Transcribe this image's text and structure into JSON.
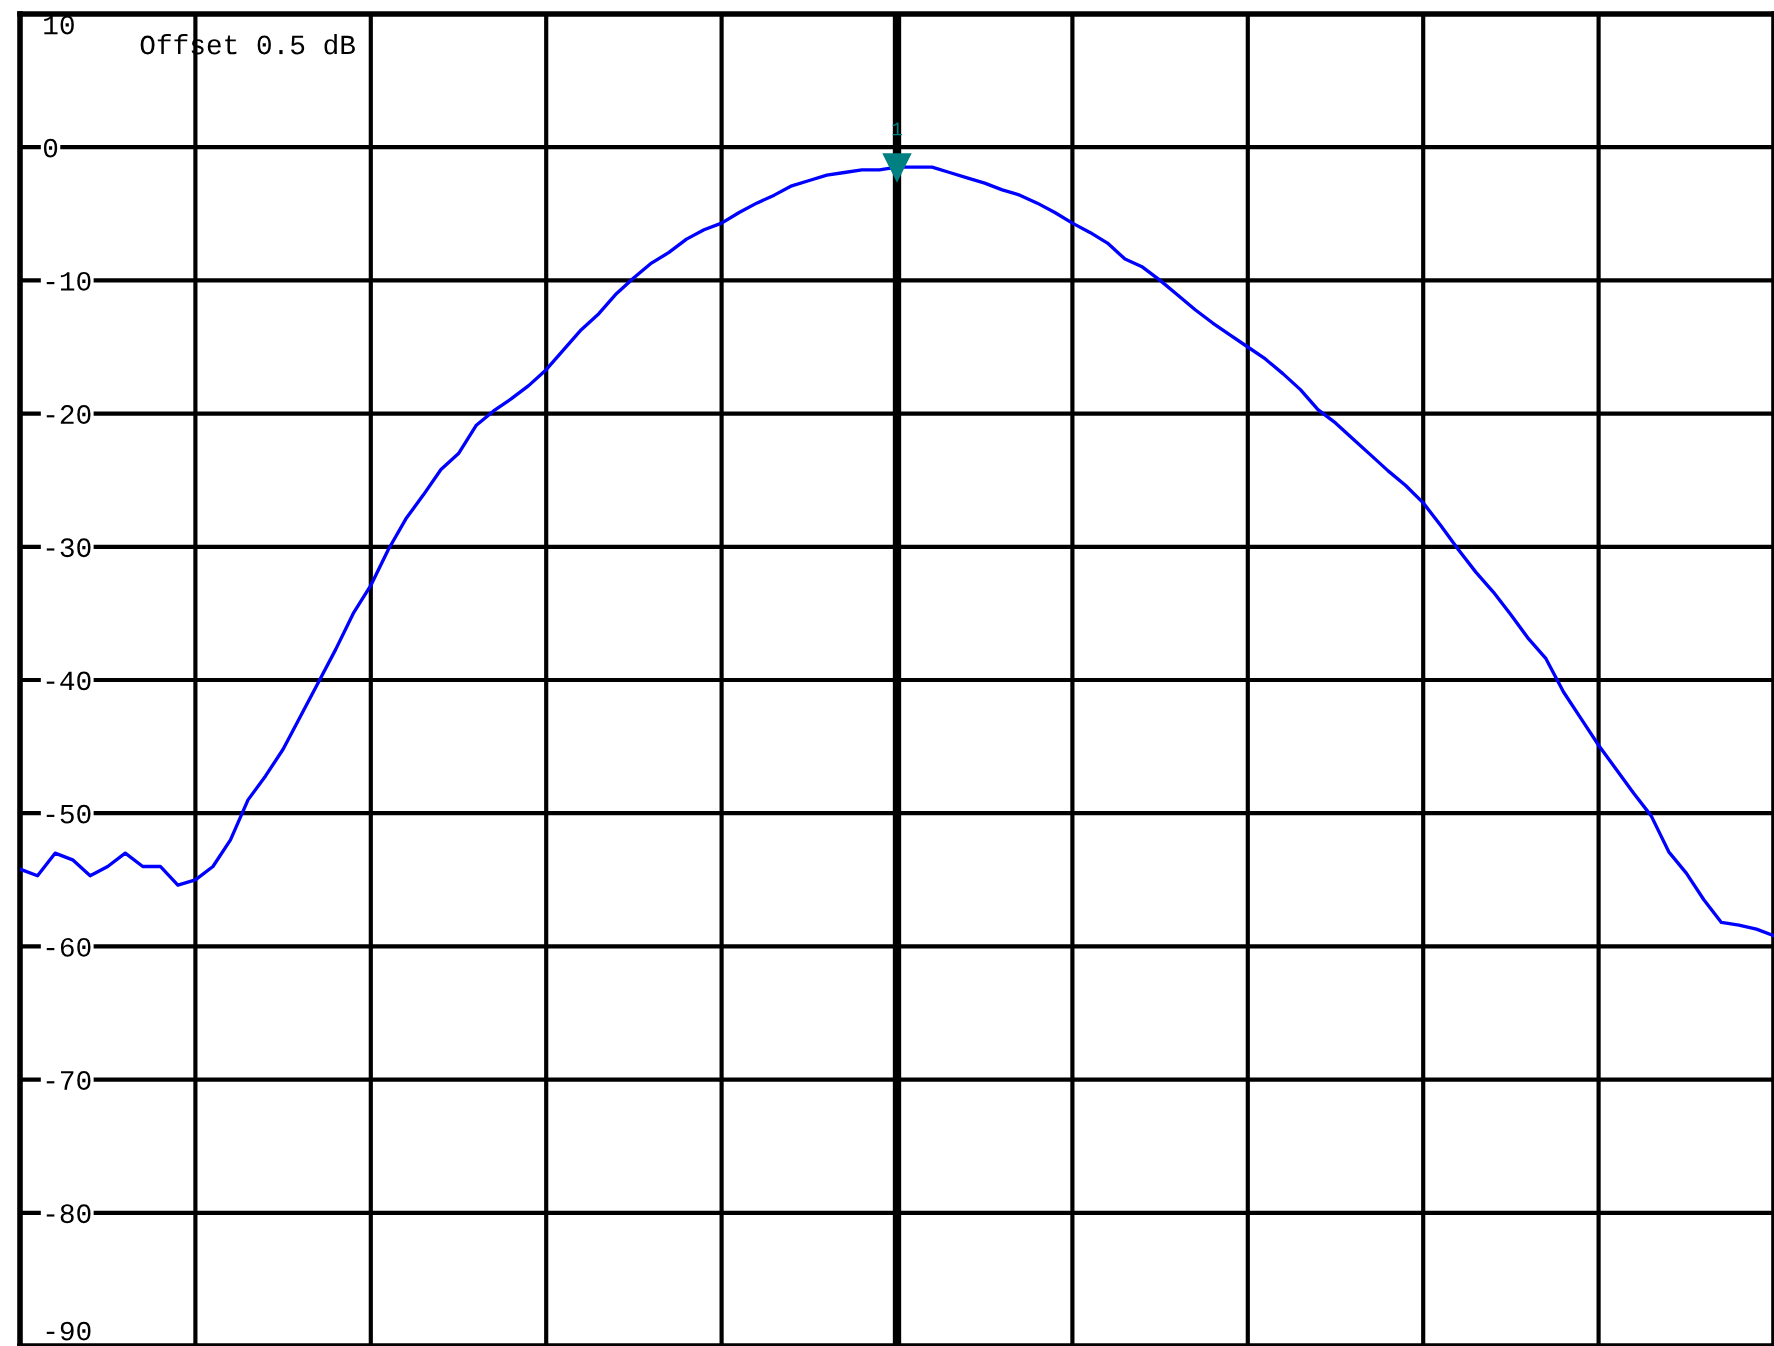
{
  "chart_data": {
    "type": "line",
    "categories": [
      null,
      null,
      null,
      null,
      null,
      null,
      null,
      null,
      null,
      null,
      null,
      null,
      null,
      null,
      null,
      null,
      null,
      null,
      null,
      null,
      null,
      null,
      null,
      null,
      null,
      null,
      null,
      null,
      null,
      null,
      null,
      null,
      null,
      null,
      null,
      null,
      null,
      null,
      null,
      null,
      null,
      null,
      null,
      null,
      null,
      null,
      null,
      null,
      null,
      null,
      null,
      null,
      null,
      null,
      null,
      null,
      null,
      null,
      null,
      null,
      null,
      null,
      null,
      null,
      null,
      null,
      null,
      null,
      null,
      null,
      null,
      null,
      null,
      null,
      null,
      null,
      null,
      null,
      null,
      null,
      null,
      null,
      null,
      null,
      null,
      null,
      null,
      null,
      null,
      null,
      null,
      null,
      null,
      null,
      null,
      null,
      null,
      null,
      null,
      null,
      null
    ],
    "series": [
      {
        "color": "#0000ff",
        "values": [
          -54.2,
          -54.7,
          -53.0,
          -53.5,
          -54.7,
          -54.0,
          -53.0,
          -54.0,
          -54.0,
          -55.4,
          -55.0,
          -54.0,
          -52.0,
          -49.0,
          -47.2,
          -45.2,
          -42.7,
          -40.2,
          -37.7,
          -35.0,
          -32.9,
          -30.2,
          -27.9,
          -26.1,
          -24.2,
          -23.0,
          -20.9,
          -19.8,
          -18.9,
          -17.9,
          -16.7,
          -15.2,
          -13.7,
          -12.5,
          -11.0,
          -9.8,
          -8.7,
          -7.9,
          -6.9,
          -6.2,
          -5.7,
          -4.9,
          -4.2,
          -3.6,
          -2.9,
          -2.5,
          -2.1,
          -1.9,
          -1.7,
          -1.7,
          -1.5,
          -1.5,
          -1.5,
          -1.9,
          -2.3,
          -2.7,
          -3.2,
          -3.6,
          -4.2,
          -4.9,
          -5.7,
          -6.4,
          -7.2,
          -8.4,
          -9.0,
          -10.0,
          -11.1,
          -12.2,
          -13.2,
          -14.1,
          -15.0,
          -15.9,
          -17.0,
          -18.2,
          -19.7,
          -20.7,
          -21.9,
          -23.1,
          -24.3,
          -25.4,
          -26.7,
          -28.4,
          -30.2,
          -31.9,
          -33.4,
          -35.1,
          -36.9,
          -38.4,
          -40.9,
          -42.9,
          -44.9,
          -46.7,
          -48.5,
          -50.2,
          -52.9,
          -54.5,
          -56.5,
          -58.2,
          -58.4,
          -58.7,
          -59.2
        ]
      }
    ],
    "ylim": [
      -90,
      10
    ],
    "yticks": [
      10,
      0,
      -10,
      -20,
      -30,
      -40,
      -50,
      -60,
      -70,
      -80,
      -90
    ],
    "grid": true,
    "tick_labels": "y",
    "marker": "none",
    "line_style": "solid",
    "annotations": [
      "Offset 0.5 dB",
      {
        "text": "1",
        "y": -1.5
      }
    ]
  }
}
